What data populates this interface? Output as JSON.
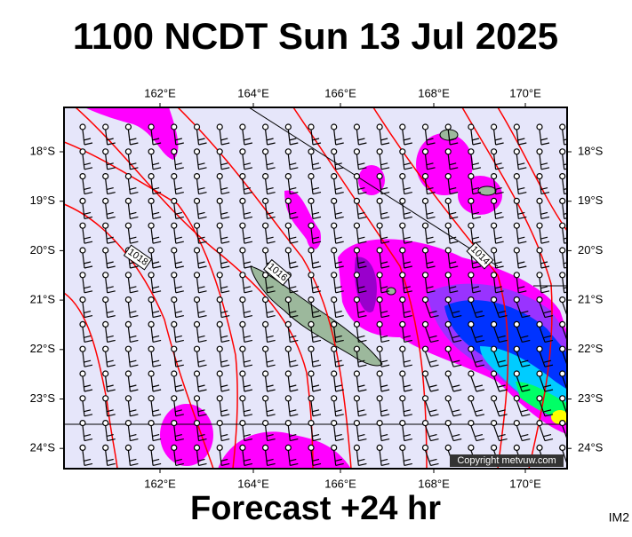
{
  "header": {
    "title": "1100 NCDT Sun 13 Jul 2025"
  },
  "map": {
    "lon_labels": [
      "162°E",
      "164°E",
      "166°E",
      "168°E",
      "170°E"
    ],
    "lat_labels": [
      "18°S",
      "19°S",
      "20°S",
      "21°S",
      "22°S",
      "23°S",
      "24°S"
    ],
    "isobar_labels": [
      "1018",
      "1016",
      "1014"
    ],
    "copyright": "Copyright metvuw.com"
  },
  "footer": {
    "caption": "Forecast +24 hr",
    "code": "IM2"
  }
}
